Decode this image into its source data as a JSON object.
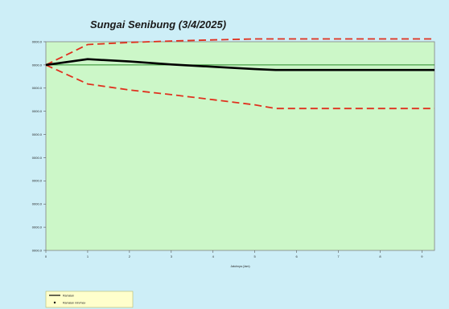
{
  "chart_data": {
    "type": "line",
    "title": "Sungai Senibung (3/4/2025)",
    "xlabel": "Jatuhnya (Jam)",
    "ylabel": "",
    "xlim": [
      0,
      9.3
    ],
    "ylim": [
      0,
      9
    ],
    "x_ticks": [
      0,
      1,
      2,
      3,
      4,
      5,
      6,
      7,
      8,
      9
    ],
    "y_ticks": [
      {
        "value": 0,
        "label": "0000.0"
      },
      {
        "value": 1,
        "label": "0000.0"
      },
      {
        "value": 2,
        "label": "0000.0"
      },
      {
        "value": 3,
        "label": "0000.0"
      },
      {
        "value": 4,
        "label": "0000.0"
      },
      {
        "value": 5,
        "label": "0000.0"
      },
      {
        "value": 6,
        "label": "0000.0"
      },
      {
        "value": 7,
        "label": "0000.0"
      },
      {
        "value": 8,
        "label": "0000.0"
      },
      {
        "value": 9,
        "label": "0000.0"
      }
    ],
    "grid": false,
    "legend_position": "bottom-left",
    "series": [
      {
        "name": "Ramalan",
        "color": "#000000",
        "style": "solid",
        "x": [
          0,
          1,
          2,
          3,
          4,
          5,
          5.5,
          6,
          7,
          8,
          9,
          9.3
        ],
        "y": [
          8.0,
          8.25,
          8.15,
          8.02,
          7.92,
          7.82,
          7.78,
          7.78,
          7.78,
          7.78,
          7.78,
          7.78
        ]
      },
      {
        "name": "Ramalan min/max",
        "color": "#e0301e",
        "style": "dashed",
        "x": [
          0,
          1,
          2,
          3,
          4,
          5,
          5.5,
          6,
          7,
          8,
          9,
          9.3
        ],
        "y": [
          8.0,
          8.88,
          8.97,
          9.03,
          9.08,
          9.12,
          9.12,
          9.12,
          9.12,
          9.12,
          9.12,
          9.12
        ]
      },
      {
        "name": "",
        "color": "#e0301e",
        "style": "dashed",
        "x": [
          0,
          1,
          2,
          3,
          4,
          5,
          5.5,
          6,
          7,
          8,
          9,
          9.3
        ],
        "y": [
          8.0,
          7.18,
          6.92,
          6.72,
          6.5,
          6.28,
          6.12,
          6.12,
          6.12,
          6.12,
          6.12,
          6.12
        ]
      },
      {
        "name": "",
        "color": "#2a8a2a",
        "style": "solid",
        "x": [
          0,
          9.3
        ],
        "y": [
          8.0,
          8.0
        ]
      }
    ]
  }
}
